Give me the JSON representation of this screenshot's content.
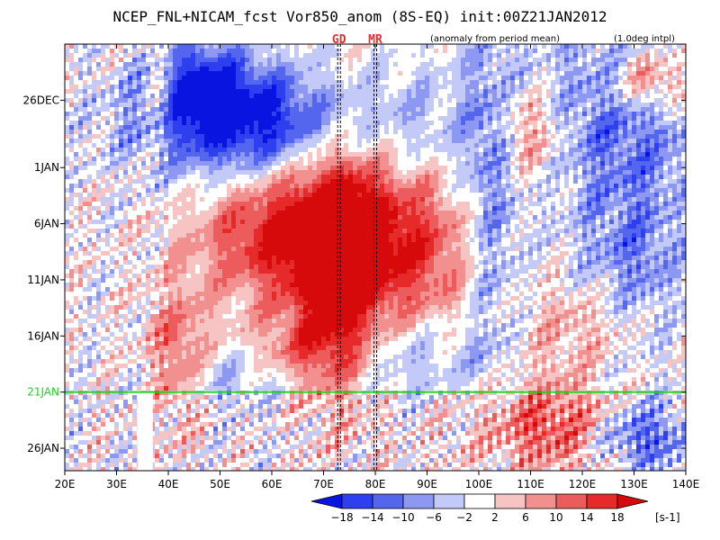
{
  "chart_data": {
    "type": "heatmap",
    "title": "NCEP_FNL+NICAM_fcst Vor850_anom (8S-EQ) init:00Z21JAN2012",
    "subtitle_left": "(anomaly from period mean)",
    "subtitle_right": "(1.0deg intpl)",
    "x_ticks": [
      "20E",
      "30E",
      "40E",
      "50E",
      "60E",
      "70E",
      "80E",
      "90E",
      "100E",
      "110E",
      "120E",
      "130E",
      "140E"
    ],
    "x_range": [
      20,
      140
    ],
    "y_ticks": [
      "26DEC",
      "1JAN",
      "6JAN",
      "11JAN",
      "16JAN",
      "21JAN",
      "26JAN"
    ],
    "y_tick_days": [
      5,
      11,
      16,
      21,
      26,
      31,
      36
    ],
    "y_range_days": [
      0,
      38
    ],
    "init_line_day": 31,
    "init_label": "21JAN",
    "markers": [
      {
        "label": "GD",
        "lon": 73
      },
      {
        "label": "MR",
        "lon": 80
      }
    ],
    "missing_band_lon": [
      34,
      37
    ],
    "colorbar": {
      "levels": [
        -18,
        -14,
        -10,
        -6,
        -2,
        2,
        6,
        10,
        14,
        18
      ],
      "labels": [
        "−18",
        "−14",
        "−10",
        "−6",
        "−2",
        "2",
        "6",
        "10",
        "14",
        "18"
      ],
      "colors": [
        "#0a14e0",
        "#2e3fef",
        "#5566ee",
        "#8c98f2",
        "#c4caf8",
        "#ffffff",
        "#f7c4c4",
        "#f28f8f",
        "#ec5c5c",
        "#e62a2a",
        "#d60a0a"
      ],
      "units": "[s-1]"
    },
    "colors": {
      "init_line": "#22d022",
      "marker_lines": "#000000"
    }
  }
}
